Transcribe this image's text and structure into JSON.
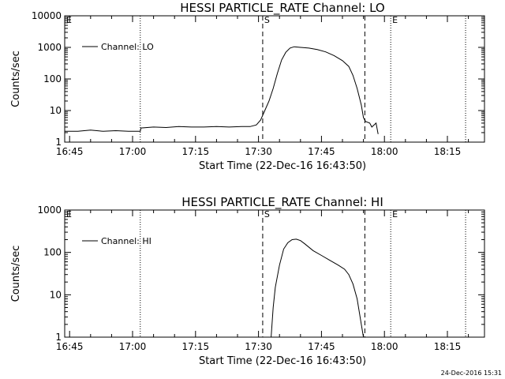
{
  "chart_data": [
    {
      "type": "line",
      "title": "HESSI PARTICLE_RATE Channel: LO",
      "xlabel": "Start Time (22-Dec-16 16:43:50)",
      "ylabel": "Counts/sec",
      "yscale": "log",
      "xlim": [
        "16:43:50",
        "18:23:50"
      ],
      "ylim": [
        1,
        10000
      ],
      "x_ticks": [
        "16:45",
        "17:00",
        "17:15",
        "17:30",
        "17:45",
        "18:00",
        "18:15"
      ],
      "y_ticks": [
        "1",
        "10",
        "100",
        "1000",
        "10000"
      ],
      "grid": false,
      "legend": {
        "position": "top-left",
        "entries": [
          "Channel: LO"
        ]
      },
      "markers": {
        "dotted": [
          "17:01:50",
          "18:01:30",
          "18:19:20"
        ],
        "dashed": [
          "17:31:00",
          "17:55:20"
        ],
        "labels": [
          {
            "text": "S",
            "at": "17:31:00"
          },
          {
            "text": "E",
            "at": "18:01:30"
          },
          {
            "text": "E",
            "at": "16:43:50"
          }
        ]
      },
      "series": [
        {
          "name": "Channel: LO",
          "points": [
            [
              "16:43:50",
              2.2
            ],
            [
              "16:47:00",
              2.2
            ],
            [
              "16:50:00",
              2.4
            ],
            [
              "16:53:00",
              2.2
            ],
            [
              "16:56:00",
              2.3
            ],
            [
              "16:59:00",
              2.2
            ],
            [
              "17:01:50",
              2.2
            ],
            [
              "17:02:00",
              2.8
            ],
            [
              "17:05:00",
              3.0
            ],
            [
              "17:08:00",
              2.9
            ],
            [
              "17:11:00",
              3.1
            ],
            [
              "17:14:00",
              3.0
            ],
            [
              "17:17:00",
              3.0
            ],
            [
              "17:20:00",
              3.1
            ],
            [
              "17:23:00",
              3.0
            ],
            [
              "17:26:00",
              3.1
            ],
            [
              "17:28:00",
              3.1
            ],
            [
              "17:29:30",
              3.5
            ],
            [
              "17:30:30",
              5
            ],
            [
              "17:31:30",
              10
            ],
            [
              "17:32:30",
              20
            ],
            [
              "17:33:30",
              50
            ],
            [
              "17:34:30",
              150
            ],
            [
              "17:35:30",
              400
            ],
            [
              "17:36:30",
              700
            ],
            [
              "17:37:30",
              950
            ],
            [
              "17:38:30",
              1050
            ],
            [
              "17:40:00",
              1000
            ],
            [
              "17:42:00",
              950
            ],
            [
              "17:44:00",
              850
            ],
            [
              "17:46:00",
              720
            ],
            [
              "17:48:00",
              550
            ],
            [
              "17:50:00",
              380
            ],
            [
              "17:51:30",
              250
            ],
            [
              "17:52:30",
              130
            ],
            [
              "17:53:30",
              50
            ],
            [
              "17:54:30",
              15
            ],
            [
              "17:55:00",
              6
            ],
            [
              "17:55:30",
              4.5
            ],
            [
              "17:56:30",
              4
            ],
            [
              "17:57:00",
              3
            ],
            [
              "17:58:00",
              4
            ],
            [
              "17:58:30",
              1.8
            ]
          ]
        }
      ]
    },
    {
      "type": "line",
      "title": "HESSI PARTICLE_RATE Channel: HI",
      "xlabel": "Start Time (22-Dec-16 16:43:50)",
      "ylabel": "Counts/sec",
      "yscale": "log",
      "xlim": [
        "16:43:50",
        "18:23:50"
      ],
      "ylim": [
        1,
        1000
      ],
      "x_ticks": [
        "16:45",
        "17:00",
        "17:15",
        "17:30",
        "17:45",
        "18:00",
        "18:15"
      ],
      "y_ticks": [
        "1",
        "10",
        "100",
        "1000"
      ],
      "grid": false,
      "legend": {
        "position": "top-left",
        "entries": [
          "Channel: HI"
        ]
      },
      "markers": {
        "dotted": [
          "17:01:50",
          "18:01:30",
          "18:19:20"
        ],
        "dashed": [
          "17:31:00",
          "17:55:20"
        ],
        "labels": [
          {
            "text": "S",
            "at": "17:31:00"
          },
          {
            "text": "E",
            "at": "18:01:30"
          },
          {
            "text": "E",
            "at": "16:43:50"
          }
        ]
      },
      "series": [
        {
          "name": "Channel: HI",
          "points": [
            [
              "17:33:00",
              1
            ],
            [
              "17:33:30",
              5
            ],
            [
              "17:34:00",
              15
            ],
            [
              "17:35:00",
              50
            ],
            [
              "17:36:00",
              120
            ],
            [
              "17:37:00",
              170
            ],
            [
              "17:38:00",
              200
            ],
            [
              "17:39:00",
              205
            ],
            [
              "17:40:00",
              190
            ],
            [
              "17:41:00",
              160
            ],
            [
              "17:43:00",
              110
            ],
            [
              "17:45:00",
              85
            ],
            [
              "17:47:00",
              65
            ],
            [
              "17:49:00",
              50
            ],
            [
              "17:50:30",
              40
            ],
            [
              "17:51:30",
              30
            ],
            [
              "17:52:30",
              18
            ],
            [
              "17:53:30",
              8
            ],
            [
              "17:54:30",
              2
            ],
            [
              "17:55:00",
              1
            ]
          ]
        }
      ]
    }
  ],
  "footer": {
    "timestamp": "24-Dec-2016 15:31"
  }
}
